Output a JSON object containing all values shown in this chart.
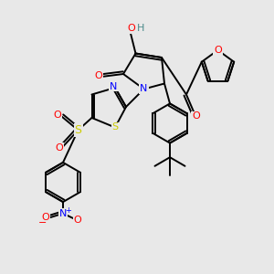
{
  "bg": "#e8e8e8",
  "C": "#000000",
  "N": "#0000ff",
  "O": "#ff0000",
  "S": "#cccc00",
  "H": "#4a8a8a",
  "lw": 1.4
}
